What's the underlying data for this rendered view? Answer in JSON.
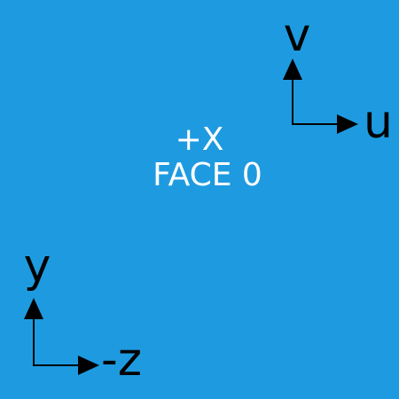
{
  "face": {
    "background_color": "#1E9BE0",
    "axis_label": "+X",
    "face_label": "FACE 0"
  },
  "uv_axes": {
    "vertical_label": "v",
    "horizontal_label": "u",
    "color": "#000000"
  },
  "world_axes": {
    "vertical_label": "y",
    "horizontal_label": "-z",
    "color": "#000000"
  }
}
